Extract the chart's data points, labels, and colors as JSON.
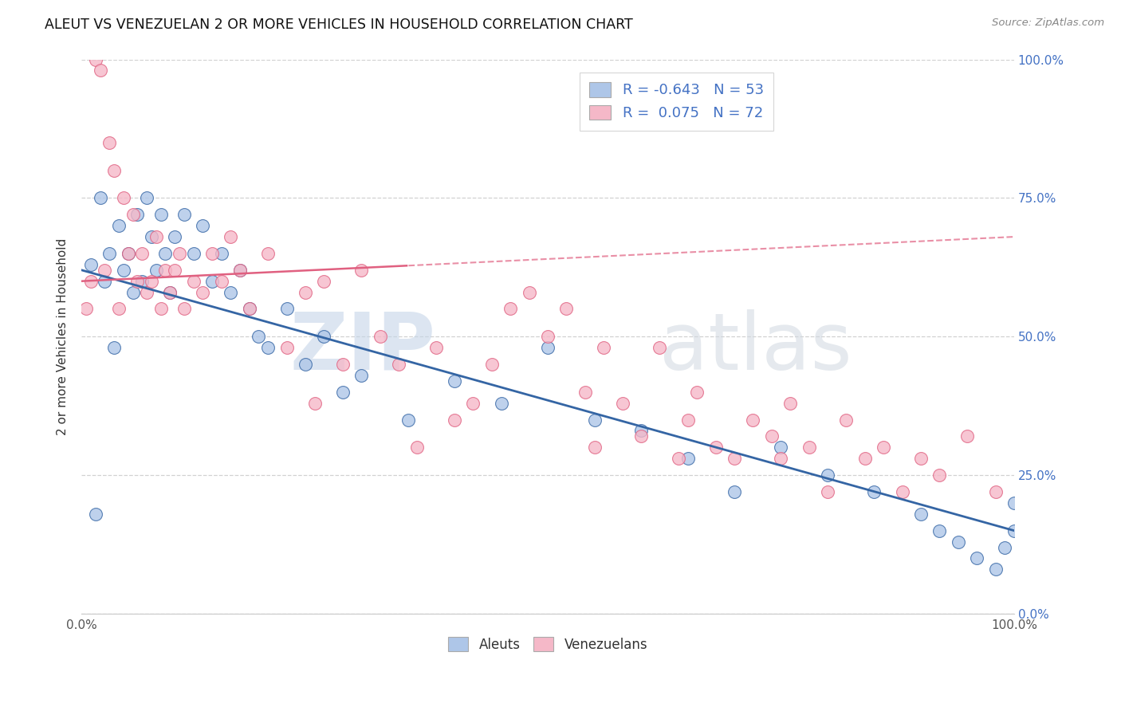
{
  "title": "ALEUT VS VENEZUELAN 2 OR MORE VEHICLES IN HOUSEHOLD CORRELATION CHART",
  "source": "Source: ZipAtlas.com",
  "ylabel": "2 or more Vehicles in Household",
  "legend_aleut_r": "-0.643",
  "legend_aleut_n": "53",
  "legend_venezuelan_r": "0.075",
  "legend_venezuelan_n": "72",
  "aleut_color": "#aec6e8",
  "venezuelan_color": "#f5b8c8",
  "aleut_line_color": "#3465a4",
  "venezuelan_line_color": "#e06080",
  "aleut_x": [
    1.0,
    1.5,
    2.0,
    2.5,
    3.0,
    3.5,
    4.0,
    4.5,
    5.0,
    5.5,
    6.0,
    6.5,
    7.0,
    7.5,
    8.0,
    8.5,
    9.0,
    9.5,
    10.0,
    11.0,
    12.0,
    13.0,
    14.0,
    15.0,
    16.0,
    17.0,
    18.0,
    19.0,
    20.0,
    22.0,
    24.0,
    26.0,
    28.0,
    30.0,
    35.0,
    40.0,
    45.0,
    50.0,
    55.0,
    60.0,
    65.0,
    70.0,
    75.0,
    80.0,
    85.0,
    90.0,
    92.0,
    94.0,
    96.0,
    98.0,
    99.0,
    100.0,
    100.0
  ],
  "aleut_y": [
    63,
    18,
    75,
    60,
    65,
    48,
    70,
    62,
    65,
    58,
    72,
    60,
    75,
    68,
    62,
    72,
    65,
    58,
    68,
    72,
    65,
    70,
    60,
    65,
    58,
    62,
    55,
    50,
    48,
    55,
    45,
    50,
    40,
    43,
    35,
    42,
    38,
    48,
    35,
    33,
    28,
    22,
    30,
    25,
    22,
    18,
    15,
    13,
    10,
    8,
    12,
    15,
    20
  ],
  "venezuelan_x": [
    0.5,
    1.0,
    1.5,
    2.0,
    2.5,
    3.0,
    3.5,
    4.0,
    4.5,
    5.0,
    5.5,
    6.0,
    6.5,
    7.0,
    7.5,
    8.0,
    8.5,
    9.0,
    9.5,
    10.0,
    10.5,
    11.0,
    12.0,
    13.0,
    14.0,
    15.0,
    16.0,
    17.0,
    18.0,
    20.0,
    22.0,
    24.0,
    25.0,
    26.0,
    28.0,
    30.0,
    32.0,
    34.0,
    36.0,
    38.0,
    40.0,
    42.0,
    44.0,
    46.0,
    48.0,
    50.0,
    52.0,
    54.0,
    55.0,
    56.0,
    58.0,
    60.0,
    62.0,
    64.0,
    65.0,
    66.0,
    68.0,
    70.0,
    72.0,
    74.0,
    75.0,
    76.0,
    78.0,
    80.0,
    82.0,
    84.0,
    86.0,
    88.0,
    90.0,
    92.0,
    95.0,
    98.0
  ],
  "venezuelan_y": [
    55,
    60,
    100,
    98,
    62,
    85,
    80,
    55,
    75,
    65,
    72,
    60,
    65,
    58,
    60,
    68,
    55,
    62,
    58,
    62,
    65,
    55,
    60,
    58,
    65,
    60,
    68,
    62,
    55,
    65,
    48,
    58,
    38,
    60,
    45,
    62,
    50,
    45,
    30,
    48,
    35,
    38,
    45,
    55,
    58,
    50,
    55,
    40,
    30,
    48,
    38,
    32,
    48,
    28,
    35,
    40,
    30,
    28,
    35,
    32,
    28,
    38,
    30,
    22,
    35,
    28,
    30,
    22,
    28,
    25,
    32,
    22
  ]
}
